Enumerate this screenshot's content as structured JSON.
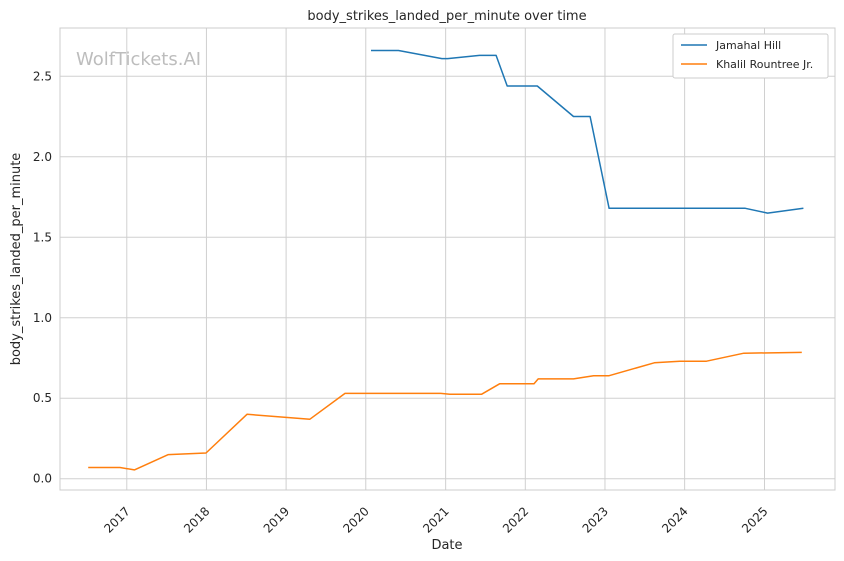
{
  "chart_data": {
    "type": "line",
    "title": "body_strikes_landed_per_minute over time",
    "xlabel": "Date",
    "ylabel": "body_strikes_landed_per_minute",
    "watermark": "WolfTickets.AI",
    "x_ticks": [
      "2017",
      "2018",
      "2019",
      "2020",
      "2021",
      "2022",
      "2023",
      "2024",
      "2025"
    ],
    "y_ticks": [
      "0.0",
      "0.5",
      "1.0",
      "1.5",
      "2.0",
      "2.5"
    ],
    "ylim": [
      -0.07,
      2.8
    ],
    "xlim": [
      "2016-03-01",
      "2025-11-20"
    ],
    "grid": true,
    "legend_position": "top-right",
    "series": [
      {
        "name": "Jamahal Hill",
        "color": "#1f77b4",
        "points": [
          [
            "2020-01-25",
            2.66
          ],
          [
            "2020-05-30",
            2.66
          ],
          [
            "2020-12-15",
            2.61
          ],
          [
            "2021-01-10",
            2.61
          ],
          [
            "2021-06-05",
            2.63
          ],
          [
            "2021-08-20",
            2.63
          ],
          [
            "2021-10-10",
            2.44
          ],
          [
            "2022-02-25",
            2.44
          ],
          [
            "2022-08-10",
            2.25
          ],
          [
            "2022-10-25",
            2.25
          ],
          [
            "2023-01-20",
            1.68
          ],
          [
            "2024-01-10",
            1.68
          ],
          [
            "2024-04-20",
            1.68
          ],
          [
            "2024-10-05",
            1.68
          ],
          [
            "2025-01-15",
            1.65
          ],
          [
            "2025-06-28",
            1.68
          ]
        ]
      },
      {
        "name": "Khalil Rountree Jr.",
        "color": "#ff7f0e",
        "points": [
          [
            "2016-07-08",
            0.07
          ],
          [
            "2016-12-01",
            0.07
          ],
          [
            "2017-02-05",
            0.055
          ],
          [
            "2017-07-10",
            0.15
          ],
          [
            "2017-12-30",
            0.16
          ],
          [
            "2018-07-06",
            0.4
          ],
          [
            "2019-04-20",
            0.37
          ],
          [
            "2019-09-28",
            0.53
          ],
          [
            "2020-12-10",
            0.53
          ],
          [
            "2021-01-20",
            0.525
          ],
          [
            "2021-06-15",
            0.525
          ],
          [
            "2021-09-05",
            0.59
          ],
          [
            "2022-02-10",
            0.59
          ],
          [
            "2022-03-01",
            0.62
          ],
          [
            "2022-08-10",
            0.62
          ],
          [
            "2022-11-10",
            0.64
          ],
          [
            "2023-01-20",
            0.64
          ],
          [
            "2023-08-15",
            0.72
          ],
          [
            "2023-12-10",
            0.73
          ],
          [
            "2024-04-10",
            0.73
          ],
          [
            "2024-09-28",
            0.78
          ],
          [
            "2025-06-21",
            0.785
          ]
        ]
      }
    ]
  }
}
